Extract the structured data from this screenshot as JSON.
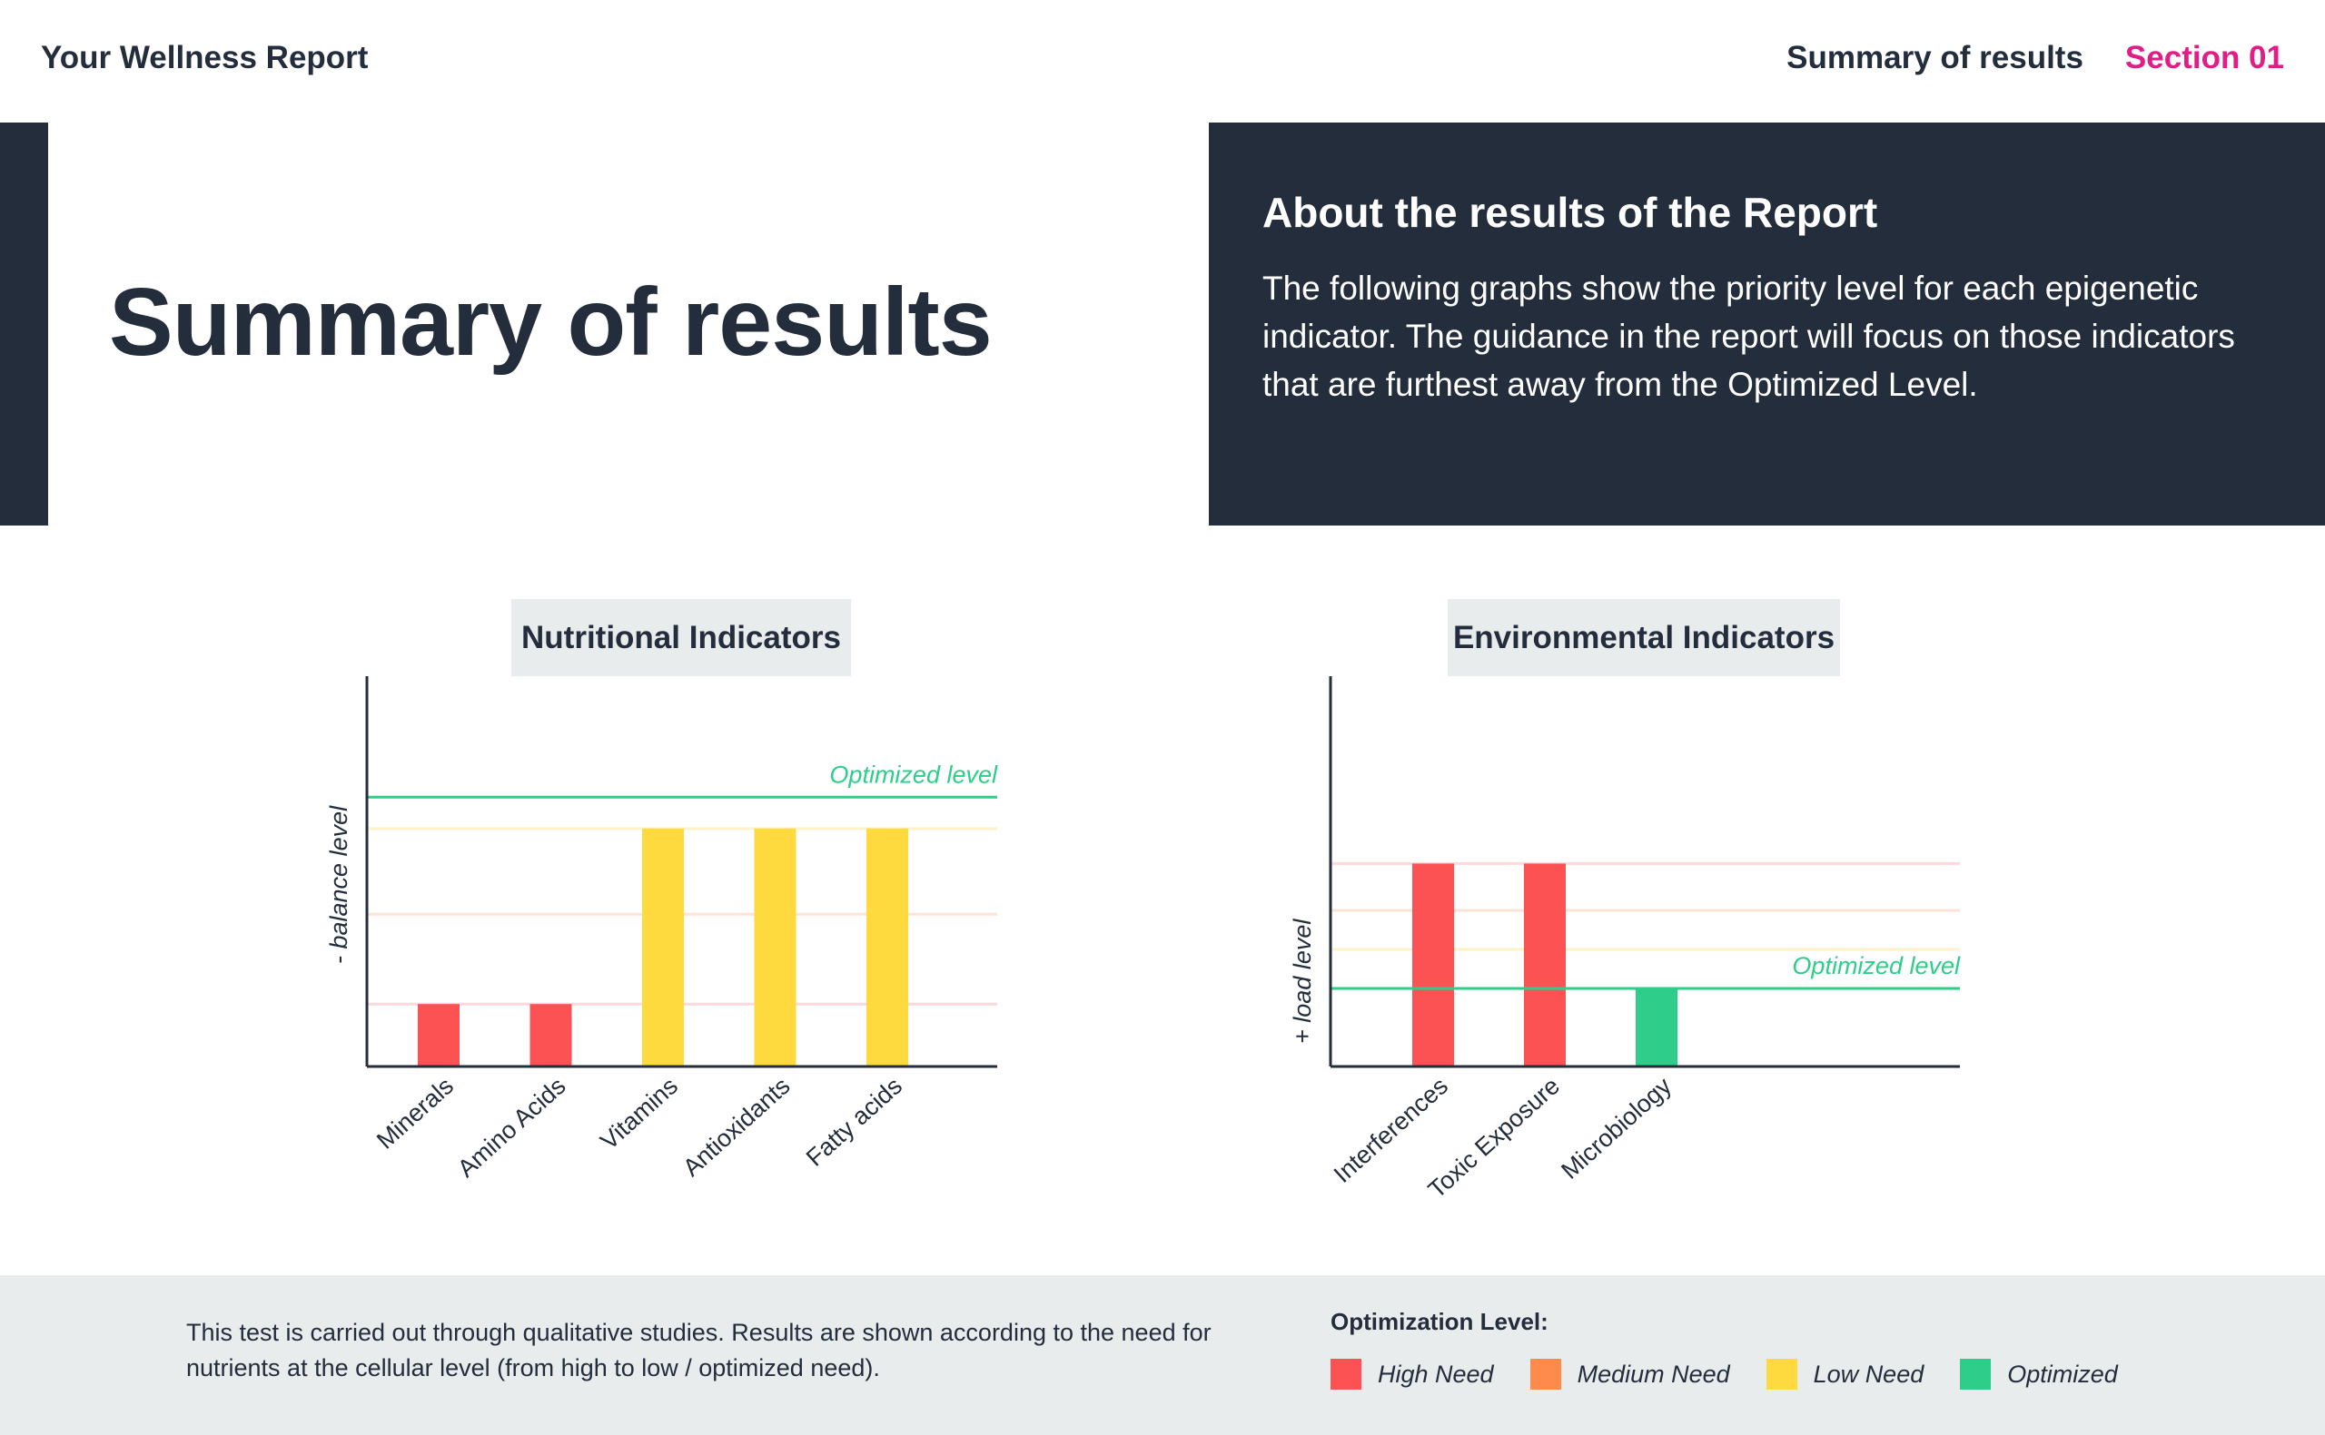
{
  "header": {
    "report_title": "Your Wellness Report",
    "section_title": "Summary of results",
    "section_number": "Section 01"
  },
  "hero": {
    "title": "Summary of results"
  },
  "about": {
    "title": "About the results of the Report",
    "text": "The following graphs show the priority level for each epigenetic indicator. The guidance in the report will focus on those indicators that are furthest away from the Optimized Level."
  },
  "colors": {
    "high": "#fd5254",
    "medium": "#fe8a4c",
    "low": "#ffda3f",
    "optimized": "#2ecd8a",
    "dark": "#232d3c",
    "accent": "#e21d86"
  },
  "chart_data": [
    {
      "type": "bar",
      "title": "Nutritional Indicators",
      "ylabel": "- balance level",
      "optimized_label": "Optimized level",
      "ylim": [
        0,
        100
      ],
      "optimized_value": 69,
      "reference_lines": [
        {
          "level": "low",
          "value": 61
        },
        {
          "level": "medium",
          "value": 39
        },
        {
          "level": "high",
          "value": 16
        }
      ],
      "categories": [
        "Minerals",
        "Amino Acids",
        "Vitamins",
        "Antioxidants",
        "Fatty acids"
      ],
      "values": [
        16,
        16,
        61,
        61,
        61
      ],
      "levels": [
        "high",
        "high",
        "low",
        "low",
        "low"
      ]
    },
    {
      "type": "bar",
      "title": "Environmental Indicators",
      "ylabel": "+ load level",
      "optimized_label": "Optimized level",
      "ylim": [
        0,
        100
      ],
      "optimized_value": 20,
      "reference_lines": [
        {
          "level": "high",
          "value": 52
        },
        {
          "level": "medium",
          "value": 40
        },
        {
          "level": "low",
          "value": 30
        }
      ],
      "categories": [
        "Interferences",
        "Toxic Exposure",
        "Microbiology"
      ],
      "values": [
        52,
        52,
        20
      ],
      "levels": [
        "high",
        "high",
        "optimized"
      ]
    }
  ],
  "footer": {
    "note": "This test is carried out through qualitative studies. Results are shown according to the need for nutrients at the cellular level (from high to low / optimized need).",
    "legend_title": "Optimization Level:",
    "legend": [
      {
        "label": "High Need",
        "color": "#fd5254"
      },
      {
        "label": "Medium Need",
        "color": "#fe8a4c"
      },
      {
        "label": "Low Need",
        "color": "#ffda3f"
      },
      {
        "label": "Optimized",
        "color": "#2ecd8a"
      }
    ]
  }
}
